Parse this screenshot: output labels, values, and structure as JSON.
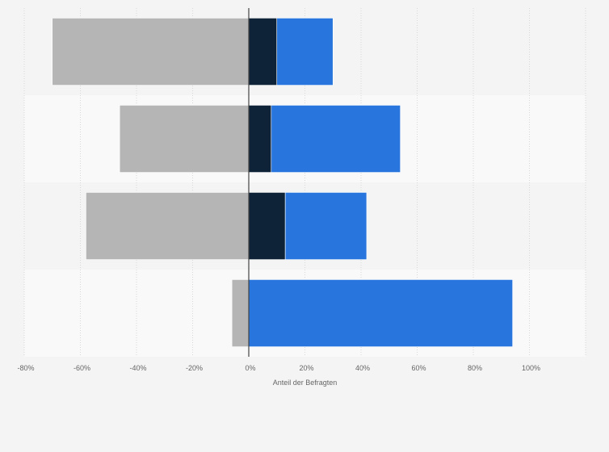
{
  "chart_data": {
    "type": "bar",
    "orientation": "horizontal",
    "stacked": "diverging",
    "categories": [
      "",
      "",
      "",
      ""
    ],
    "series": [
      {
        "values": [
          -70,
          -46,
          -58,
          -6
        ],
        "color": "#b5b5b5"
      },
      {
        "values": [
          10,
          8,
          13,
          0
        ],
        "color": "#0e2338"
      },
      {
        "values": [
          20,
          46,
          29,
          94
        ],
        "color": "#2876dd"
      }
    ],
    "xlabel": "Anteil der Befragten",
    "xlim": [
      -80,
      120
    ],
    "xticks": [
      {
        "value": -80,
        "label": "-80%"
      },
      {
        "value": -60,
        "label": "-60%"
      },
      {
        "value": -40,
        "label": "-40%"
      },
      {
        "value": -20,
        "label": "-20%"
      },
      {
        "value": 0,
        "label": "0%"
      },
      {
        "value": 20,
        "label": "20%"
      },
      {
        "value": 40,
        "label": "40%"
      },
      {
        "value": 60,
        "label": "60%"
      },
      {
        "value": 80,
        "label": "80%"
      },
      {
        "value": 100,
        "label": "100%"
      }
    ],
    "grid": true,
    "legend": "none"
  }
}
